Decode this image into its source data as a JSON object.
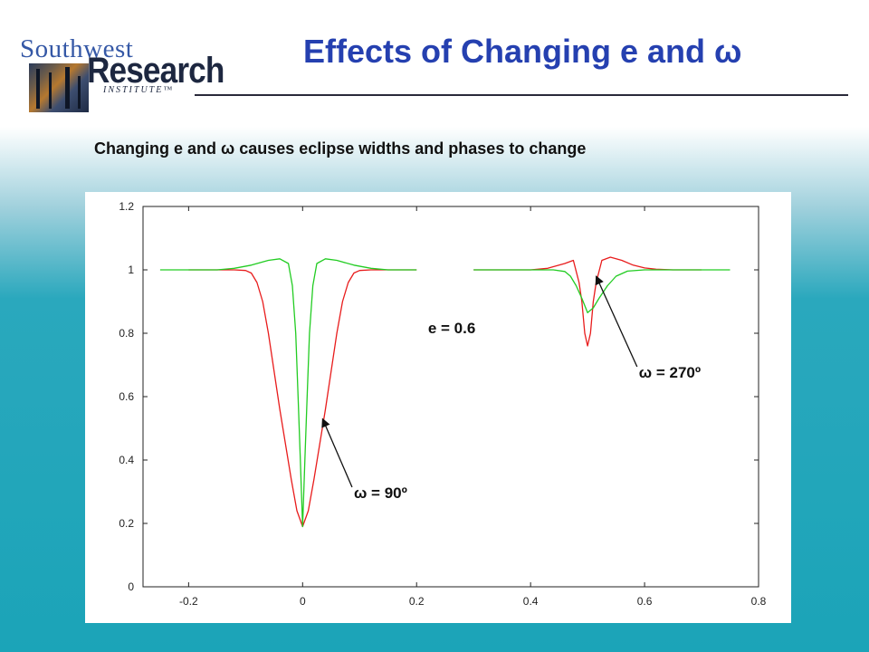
{
  "logo": {
    "line1": "Southwest",
    "line2": "Research",
    "line3": "INSTITUTE™"
  },
  "slide": {
    "title": "Effects of Changing e and ω",
    "subtitle": "Changing e and ω causes eclipse widths and phases to change"
  },
  "colors": {
    "title": "#2540b0",
    "red_series": "#e81c1c",
    "green_series": "#22cc22"
  },
  "chart_data": {
    "type": "line",
    "xlim": [
      -0.28,
      0.8
    ],
    "ylim": [
      0,
      1.2
    ],
    "xticks": [
      "-0.2",
      "0",
      "0.2",
      "0.4",
      "0.6",
      "0.8"
    ],
    "yticks": [
      "0",
      "0.2",
      "0.4",
      "0.6",
      "0.8",
      "1",
      "1.2"
    ],
    "grid": false,
    "series": [
      {
        "color": "#e81c1c",
        "segments": [
          [
            [
              -0.2,
              1
            ],
            [
              -0.12,
              1
            ],
            [
              -0.1,
              0.998
            ],
            [
              -0.09,
              0.99
            ],
            [
              -0.08,
              0.96
            ],
            [
              -0.07,
              0.9
            ],
            [
              -0.06,
              0.8
            ],
            [
              -0.05,
              0.68
            ],
            [
              -0.04,
              0.56
            ],
            [
              -0.03,
              0.45
            ],
            [
              -0.02,
              0.34
            ],
            [
              -0.01,
              0.24
            ],
            [
              0,
              0.19
            ],
            [
              0.01,
              0.24
            ],
            [
              0.02,
              0.34
            ],
            [
              0.03,
              0.45
            ],
            [
              0.04,
              0.56
            ],
            [
              0.05,
              0.68
            ],
            [
              0.06,
              0.8
            ],
            [
              0.07,
              0.9
            ],
            [
              0.08,
              0.96
            ],
            [
              0.09,
              0.99
            ],
            [
              0.1,
              0.998
            ],
            [
              0.12,
              1
            ],
            [
              0.2,
              1
            ]
          ],
          [
            [
              0.3,
              1
            ],
            [
              0.4,
              1
            ],
            [
              0.43,
              1.005
            ],
            [
              0.46,
              1.02
            ],
            [
              0.475,
              1.03
            ],
            [
              0.485,
              0.96
            ],
            [
              0.49,
              0.9
            ],
            [
              0.495,
              0.8
            ],
            [
              0.5,
              0.76
            ],
            [
              0.505,
              0.8
            ],
            [
              0.51,
              0.9
            ],
            [
              0.515,
              0.96
            ],
            [
              0.525,
              1.03
            ],
            [
              0.54,
              1.04
            ],
            [
              0.56,
              1.03
            ],
            [
              0.58,
              1.015
            ],
            [
              0.6,
              1.006
            ],
            [
              0.62,
              1.002
            ],
            [
              0.65,
              1
            ],
            [
              0.7,
              1
            ]
          ]
        ]
      },
      {
        "color": "#22cc22",
        "segments": [
          [
            [
              -0.25,
              1
            ],
            [
              -0.15,
              1
            ],
            [
              -0.12,
              1.005
            ],
            [
              -0.09,
              1.015
            ],
            [
              -0.06,
              1.03
            ],
            [
              -0.04,
              1.035
            ],
            [
              -0.025,
              1.02
            ],
            [
              -0.018,
              0.95
            ],
            [
              -0.012,
              0.8
            ],
            [
              -0.008,
              0.6
            ],
            [
              -0.004,
              0.4
            ],
            [
              0,
              0.19
            ],
            [
              0.004,
              0.4
            ],
            [
              0.008,
              0.6
            ],
            [
              0.012,
              0.8
            ],
            [
              0.018,
              0.95
            ],
            [
              0.025,
              1.02
            ],
            [
              0.04,
              1.035
            ],
            [
              0.06,
              1.03
            ],
            [
              0.09,
              1.015
            ],
            [
              0.12,
              1.005
            ],
            [
              0.15,
              1
            ],
            [
              0.2,
              1
            ]
          ],
          [
            [
              0.3,
              1
            ],
            [
              0.4,
              1
            ],
            [
              0.44,
              1
            ],
            [
              0.46,
              0.995
            ],
            [
              0.47,
              0.98
            ],
            [
              0.48,
              0.95
            ],
            [
              0.49,
              0.91
            ],
            [
              0.5,
              0.865
            ],
            [
              0.51,
              0.88
            ],
            [
              0.52,
              0.91
            ],
            [
              0.535,
              0.95
            ],
            [
              0.55,
              0.98
            ],
            [
              0.57,
              0.996
            ],
            [
              0.6,
              1
            ],
            [
              0.75,
              1
            ]
          ]
        ]
      }
    ],
    "annotations": [
      {
        "text": "e = 0.6",
        "at": [
          0.22,
          0.8
        ]
      },
      {
        "text": "ω = 90º",
        "at": [
          0.09,
          0.28
        ],
        "arrow_to": [
          0.035,
          0.53
        ]
      },
      {
        "text": "ω = 270º",
        "at": [
          0.59,
          0.66
        ],
        "arrow_to": [
          0.515,
          0.98
        ]
      }
    ]
  }
}
